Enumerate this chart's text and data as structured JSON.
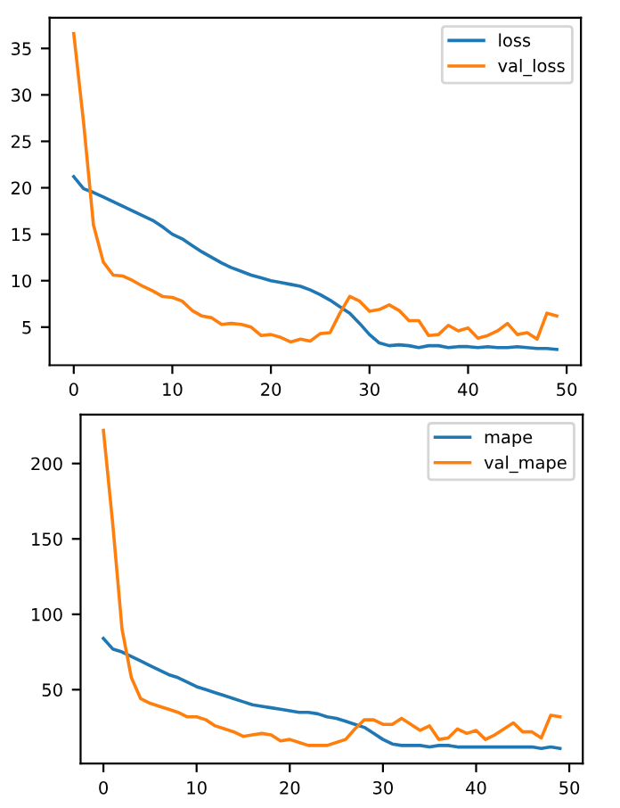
{
  "chart_data": [
    {
      "type": "line",
      "x": [
        0,
        1,
        2,
        3,
        4,
        5,
        6,
        7,
        8,
        9,
        10,
        11,
        12,
        13,
        14,
        15,
        16,
        17,
        18,
        19,
        20,
        21,
        22,
        23,
        24,
        25,
        26,
        27,
        28,
        29,
        30,
        31,
        32,
        33,
        34,
        35,
        36,
        37,
        38,
        39,
        40,
        41,
        42,
        43,
        44,
        45,
        46,
        47,
        48,
        49
      ],
      "series": [
        {
          "name": "loss",
          "color": "#1f77b4",
          "values": [
            21.2,
            19.9,
            19.5,
            19.0,
            18.5,
            18.0,
            17.5,
            17.0,
            16.5,
            15.8,
            15.0,
            14.5,
            13.8,
            13.1,
            12.5,
            11.9,
            11.4,
            11.0,
            10.6,
            10.3,
            10.0,
            9.8,
            9.6,
            9.4,
            9.0,
            8.5,
            7.9,
            7.2,
            6.5,
            5.4,
            4.2,
            3.3,
            3.0,
            3.1,
            3.0,
            2.8,
            3.0,
            3.0,
            2.8,
            2.9,
            2.9,
            2.8,
            2.9,
            2.8,
            2.8,
            2.9,
            2.8,
            2.7,
            2.7,
            2.6
          ]
        },
        {
          "name": "val_loss",
          "color": "#ff7f0e",
          "values": [
            36.6,
            27.0,
            16.0,
            12.0,
            10.6,
            10.5,
            10.0,
            9.4,
            8.9,
            8.3,
            8.2,
            7.8,
            6.8,
            6.2,
            6.0,
            5.3,
            5.4,
            5.3,
            5.0,
            4.1,
            4.2,
            3.9,
            3.4,
            3.7,
            3.5,
            4.3,
            4.4,
            6.5,
            8.3,
            7.8,
            6.7,
            6.9,
            7.4,
            6.8,
            5.7,
            5.7,
            4.1,
            4.2,
            5.2,
            4.6,
            4.9,
            3.8,
            4.1,
            4.6,
            5.4,
            4.2,
            4.4,
            3.7,
            6.5,
            6.2
          ]
        }
      ],
      "xlim": [
        -2.45,
        51.45
      ],
      "xticks": [
        0,
        10,
        20,
        30,
        40,
        50
      ],
      "ylim": [
        0.9,
        38.3
      ],
      "yticks": [
        5,
        10,
        15,
        20,
        25,
        30,
        35
      ],
      "legend": "top right",
      "grid": false
    },
    {
      "type": "line",
      "x": [
        0,
        1,
        2,
        3,
        4,
        5,
        6,
        7,
        8,
        9,
        10,
        11,
        12,
        13,
        14,
        15,
        16,
        17,
        18,
        19,
        20,
        21,
        22,
        23,
        24,
        25,
        26,
        27,
        28,
        29,
        30,
        31,
        32,
        33,
        34,
        35,
        36,
        37,
        38,
        39,
        40,
        41,
        42,
        43,
        44,
        45,
        46,
        47,
        48,
        49
      ],
      "series": [
        {
          "name": "mape",
          "color": "#1f77b4",
          "values": [
            84,
            77,
            75,
            72,
            69,
            66,
            63,
            60,
            58,
            55,
            52,
            50,
            48,
            46,
            44,
            42,
            40,
            39,
            38,
            37,
            36,
            35,
            35,
            34,
            32,
            31,
            29,
            27,
            25,
            21,
            17,
            14,
            13,
            13,
            13,
            12,
            13,
            13,
            12,
            12,
            12,
            12,
            12,
            12,
            12,
            12,
            12,
            11,
            12,
            11
          ]
        },
        {
          "name": "val_mape",
          "color": "#ff7f0e",
          "values": [
            222,
            160,
            90,
            58,
            44,
            41,
            39,
            37,
            35,
            32,
            32,
            30,
            26,
            24,
            22,
            19,
            20,
            21,
            20,
            16,
            17,
            15,
            13,
            13,
            13,
            15,
            17,
            24,
            30,
            30,
            27,
            27,
            31,
            27,
            23,
            26,
            17,
            18,
            24,
            21,
            23,
            17,
            20,
            24,
            28,
            22,
            22,
            18,
            33,
            32
          ]
        }
      ],
      "xlim": [
        -2.45,
        51.45
      ],
      "xticks": [
        0,
        10,
        20,
        30,
        40,
        50
      ],
      "ylim": [
        1.0,
        232.5
      ],
      "yticks": [
        50,
        100,
        150,
        200
      ],
      "legend": "top right",
      "grid": false
    }
  ]
}
